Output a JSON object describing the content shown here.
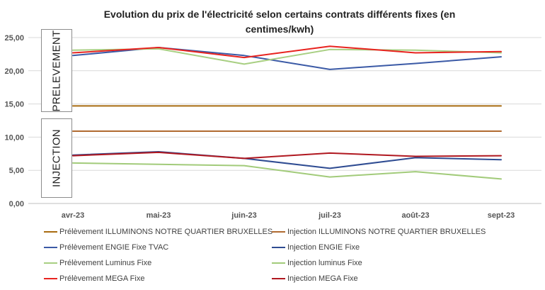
{
  "chart_data": {
    "type": "line",
    "title": "Evolution du prix de l'électricité selon certains contrats différents fixes (en centimes/kwh)",
    "categories": [
      "avr-23",
      "mai-23",
      "juin-23",
      "juil-23",
      "août-23",
      "sept-23"
    ],
    "ylim": [
      0,
      25
    ],
    "yticks": [
      "0,00",
      "5,00",
      "10,00",
      "15,00",
      "20,00",
      "25,00"
    ],
    "grid": true,
    "legend_position": "bottom",
    "group_labels": [
      "PRELEVEMENT",
      "INJECTION"
    ],
    "series": [
      {
        "name": "Prélèvement ILLUMINONS NOTRE QUARTIER BRUXELLES",
        "color": "#a86b10",
        "values": [
          14.7,
          14.7,
          14.7,
          14.7,
          14.7,
          14.7
        ]
      },
      {
        "name": "Injection ILLUMINONS NOTRE QUARTIER BRUXELLES",
        "color": "#b06a30",
        "values": [
          10.9,
          10.9,
          10.9,
          10.9,
          10.9,
          10.9
        ]
      },
      {
        "name": "Prélèvement ENGIE Fixe TVAC",
        "color": "#3b5aa6",
        "values": [
          22.3,
          23.5,
          22.3,
          20.2,
          21.1,
          22.1
        ]
      },
      {
        "name": "Injection ENGIE Fixe",
        "color": "#2f4c92",
        "values": [
          7.3,
          7.8,
          6.8,
          5.3,
          6.9,
          6.6
        ]
      },
      {
        "name": "Prélèvement Luminus Fixe",
        "color": "#a8cf82",
        "values": [
          23.1,
          23.3,
          21.0,
          23.2,
          23.1,
          22.7
        ]
      },
      {
        "name": "Injection luminus Fixe",
        "color": "#a2cb7a",
        "values": [
          6.1,
          5.9,
          5.7,
          4.0,
          4.8,
          3.7
        ]
      },
      {
        "name": "Prélèvement MEGA Fixe",
        "color": "#e8231f",
        "values": [
          22.7,
          23.5,
          22.0,
          23.7,
          22.7,
          22.9
        ]
      },
      {
        "name": "Injection MEGA Fixe",
        "color": "#b01820",
        "values": [
          7.2,
          7.7,
          6.8,
          7.6,
          7.1,
          7.2
        ]
      }
    ]
  }
}
